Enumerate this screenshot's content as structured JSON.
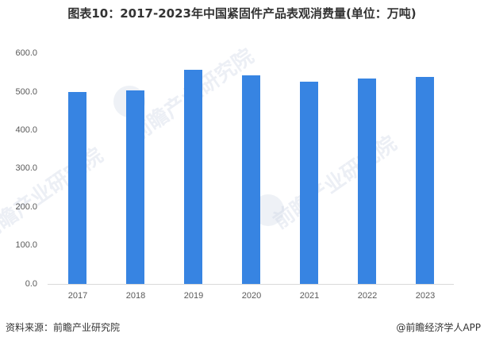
{
  "title": "图表10：2017-2023年中国紧固件产品表观消费量(单位：万吨)",
  "footer": {
    "source": "资料来源：前瞻产业研究院",
    "credit": "@前瞻经济学人APP"
  },
  "watermark": {
    "text": "前瞻产业研究院"
  },
  "colors": {
    "bar": "#3784e2",
    "axis": "#d9d9d9",
    "tick_text": "#595959"
  },
  "chart_data": {
    "type": "bar",
    "title": "图表10：2017-2023年中国紧固件产品表观消费量(单位：万吨)",
    "xlabel": "",
    "ylabel": "万吨",
    "categories": [
      "2017",
      "2018",
      "2019",
      "2020",
      "2021",
      "2022",
      "2023"
    ],
    "values": [
      499,
      503,
      557,
      543,
      526,
      534,
      540
    ],
    "ylim": [
      0,
      600
    ],
    "yticks": [
      "0.0",
      "100.0",
      "200.0",
      "300.0",
      "400.0",
      "500.0",
      "600.0"
    ],
    "grid": false,
    "legend": null
  }
}
